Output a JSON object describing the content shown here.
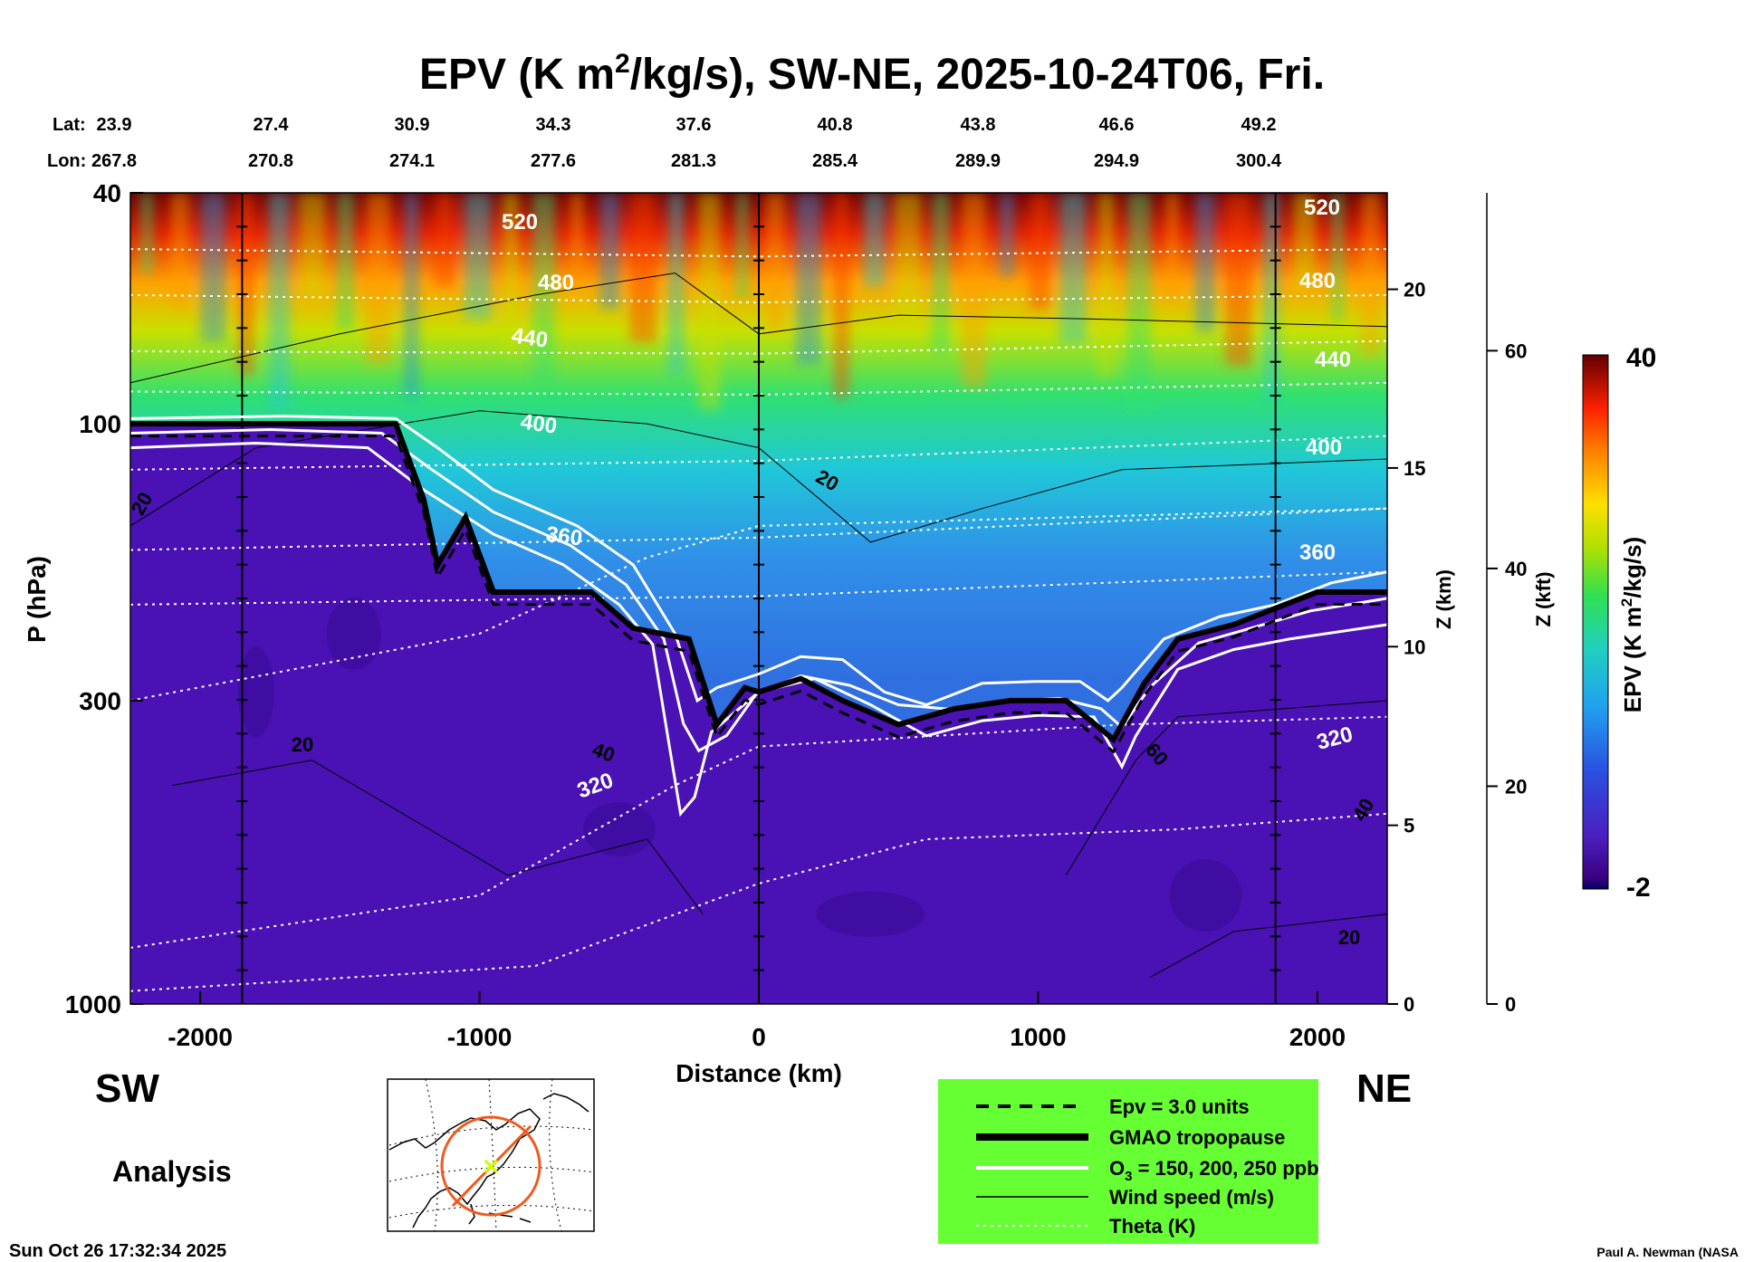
{
  "chart_data": {
    "type": "heatmap",
    "title": "EPV (K m²/kg/s), SW-NE, 2025-10-24T06, Fri.",
    "title_parts": {
      "prefix": "EPV (K m",
      "sup": "2",
      "suffix": "/kg/s), SW-NE, 2025-10-24T06, Fri."
    },
    "xlabel": "Distance (km)",
    "ylabel": "P (hPa)",
    "x_range": [
      -2250,
      2250
    ],
    "x_ticks": [
      -2000,
      -1000,
      0,
      1000,
      2000
    ],
    "x_tick_labels": [
      "-2000",
      "-1000",
      "0",
      "1000",
      "2000"
    ],
    "y_range_hpa": [
      1000,
      40
    ],
    "y_ticks_hpa": [
      40,
      100,
      300,
      1000
    ],
    "y_tick_labels": [
      "40",
      "100",
      "300",
      "1000"
    ],
    "lat_label": "Lat:",
    "lon_label": "Lon:",
    "latlon_stations": [
      {
        "lat": "23.9",
        "lon": "267.8"
      },
      {
        "lat": "27.4",
        "lon": "270.8"
      },
      {
        "lat": "30.9",
        "lon": "274.1"
      },
      {
        "lat": "34.3",
        "lon": "277.6"
      },
      {
        "lat": "37.6",
        "lon": "281.3"
      },
      {
        "lat": "40.8",
        "lon": "285.4"
      },
      {
        "lat": "43.8",
        "lon": "289.9"
      },
      {
        "lat": "46.6",
        "lon": "294.9"
      },
      {
        "lat": "49.2",
        "lon": "300.4"
      }
    ],
    "z_km_label": "Z (km)",
    "z_km_ticks": [
      0,
      5,
      10,
      15,
      20
    ],
    "z_kft_label": "Z (kft)",
    "z_kft_ticks": [
      0,
      20,
      40,
      60
    ],
    "colorbar": {
      "label_prefix": "EPV (K m",
      "label_sup": "2",
      "label_suffix": "/kg/s)",
      "min": -2,
      "max": 40,
      "min_label": "-2",
      "max_label": "40"
    },
    "theta_labels": [
      "520",
      "480",
      "440",
      "400",
      "360",
      "320",
      "520",
      "480",
      "440",
      "400",
      "360",
      "320"
    ],
    "wind_labels": [
      "20",
      "20",
      "20",
      "40",
      "60",
      "40",
      "20"
    ],
    "vertical_markers_km": [
      -1850,
      0,
      1850
    ],
    "tropopause_hpa": [
      [
        -2250,
        100
      ],
      [
        -1700,
        100
      ],
      [
        -1300,
        100
      ],
      [
        -1200,
        135
      ],
      [
        -1150,
        175
      ],
      [
        -1050,
        145
      ],
      [
        -950,
        195
      ],
      [
        -600,
        195
      ],
      [
        -450,
        225
      ],
      [
        -250,
        235
      ],
      [
        -150,
        330
      ],
      [
        -50,
        285
      ],
      [
        0,
        290
      ],
      [
        150,
        275
      ],
      [
        300,
        300
      ],
      [
        500,
        330
      ],
      [
        700,
        310
      ],
      [
        900,
        300
      ],
      [
        1100,
        300
      ],
      [
        1270,
        350
      ],
      [
        1380,
        280
      ],
      [
        1500,
        235
      ],
      [
        1700,
        222
      ],
      [
        1850,
        208
      ],
      [
        2000,
        195
      ],
      [
        2250,
        195
      ]
    ],
    "ozone_upper_hpa": [
      [
        -2250,
        98
      ],
      [
        -1700,
        97
      ],
      [
        -1300,
        98
      ],
      [
        -1150,
        110
      ],
      [
        -950,
        130
      ],
      [
        -650,
        150
      ],
      [
        -450,
        175
      ],
      [
        -300,
        230
      ],
      [
        -220,
        300
      ],
      [
        -150,
        285
      ],
      [
        0,
        270
      ],
      [
        150,
        252
      ],
      [
        300,
        255
      ],
      [
        450,
        290
      ],
      [
        600,
        305
      ],
      [
        800,
        280
      ],
      [
        1000,
        278
      ],
      [
        1150,
        278
      ],
      [
        1250,
        300
      ],
      [
        1300,
        285
      ],
      [
        1450,
        235
      ],
      [
        1650,
        215
      ],
      [
        1850,
        205
      ],
      [
        2050,
        188
      ],
      [
        2250,
        180
      ]
    ],
    "ozone_lower_hpa": [
      [
        -2250,
        110
      ],
      [
        -1800,
        108
      ],
      [
        -1400,
        110
      ],
      [
        -1200,
        130
      ],
      [
        -950,
        155
      ],
      [
        -700,
        175
      ],
      [
        -500,
        205
      ],
      [
        -380,
        240
      ],
      [
        -320,
        360
      ],
      [
        -280,
        470
      ],
      [
        -230,
        440
      ],
      [
        -170,
        340
      ],
      [
        0,
        290
      ],
      [
        200,
        275
      ],
      [
        400,
        305
      ],
      [
        600,
        345
      ],
      [
        800,
        325
      ],
      [
        1000,
        318
      ],
      [
        1200,
        320
      ],
      [
        1300,
        390
      ],
      [
        1350,
        345
      ],
      [
        1500,
        265
      ],
      [
        1700,
        245
      ],
      [
        1900,
        235
      ],
      [
        2250,
        222
      ]
    ],
    "legend": {
      "items": [
        {
          "label": "Epv = 3.0 units",
          "sub": ""
        },
        {
          "label": "GMAO tropopause",
          "sub": ""
        },
        {
          "label": "O₃ = 150, 200, 250 ppb",
          "sub": ""
        },
        {
          "label": "Wind speed (m/s)",
          "sub": ""
        },
        {
          "label": "Theta (K)",
          "sub": ""
        }
      ],
      "o3_prefix": "O",
      "o3_sub": "3",
      "o3_suffix": " = 150, 200, 250 ppb",
      "background": "#66ff33"
    },
    "left_label": "SW",
    "right_label": "NE",
    "analysis_label": "Analysis",
    "timestamp": "Sun Oct 26 17:32:34 2025",
    "credit": "Paul A. Newman (NASA",
    "colors": {
      "tropo_fill": "#4a0fb0",
      "strat_low": "#2f7fe8",
      "strat_mid": "#38d0c8",
      "strat_high": "#ff6000",
      "top": "#7a0000",
      "legend_bg": "#66ff33",
      "map_circle": "#f05a1e",
      "map_marker": "#ccff00"
    }
  }
}
